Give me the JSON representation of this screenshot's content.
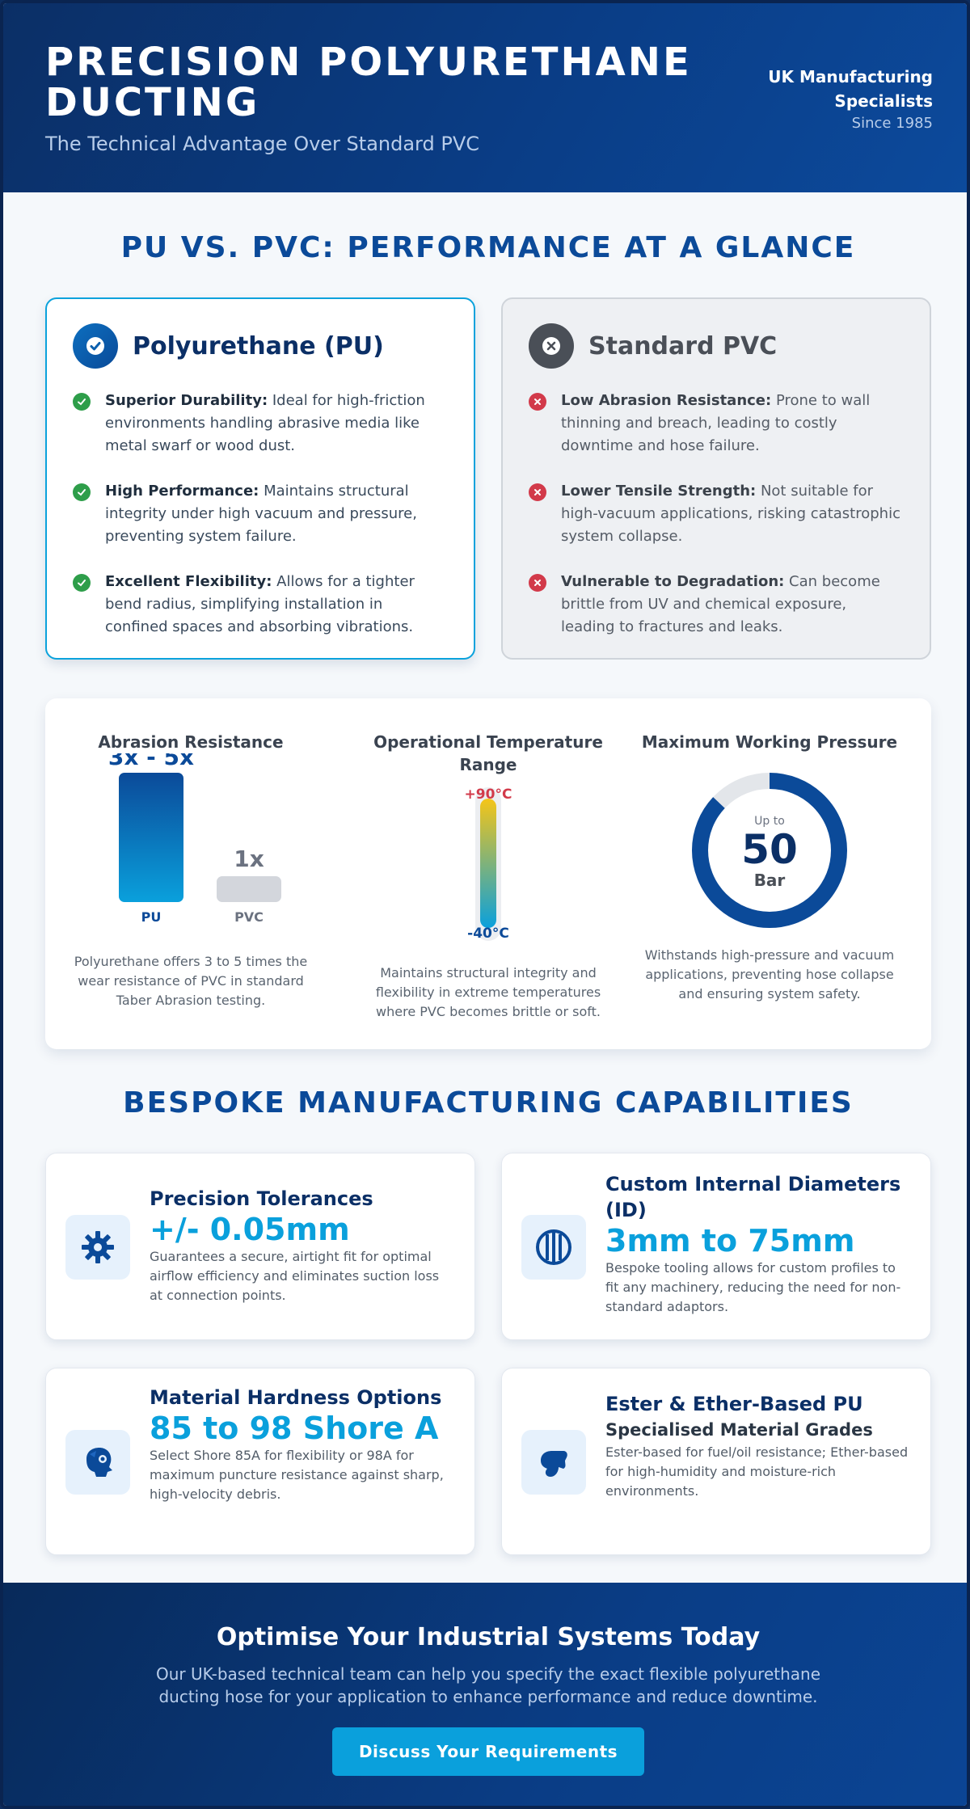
{
  "header": {
    "title": "PRECISION POLYURETHANE DUCTING",
    "subtitle": "The Technical Advantage Over Standard PVC",
    "uk_label": "UK Manufacturing Specialists",
    "since": "Since 1985"
  },
  "comparison": {
    "title": "PU VS. PVC: PERFORMANCE AT A GLANCE",
    "pu": {
      "heading": "Polyurethane (PU)",
      "icon": "check-badge-icon",
      "items": [
        {
          "lead": "Superior Durability:",
          "text": " Ideal for high-friction environments handling abrasive media like metal swarf or wood dust."
        },
        {
          "lead": "High Performance:",
          "text": " Maintains structural integrity under high vacuum and pressure, preventing system failure."
        },
        {
          "lead": "Excellent Flexibility:",
          "text": " Allows for a tighter bend radius, simplifying installation in confined spaces and absorbing vibrations."
        }
      ]
    },
    "pvc": {
      "heading": "Standard PVC",
      "icon": "x-badge-icon",
      "items": [
        {
          "lead": "Low Abrasion Resistance:",
          "text": " Prone to wall thinning and breach, leading to costly downtime and hose failure."
        },
        {
          "lead": "Lower Tensile Strength:",
          "text": " Not suitable for high-vacuum applications, risking catastrophic system collapse."
        },
        {
          "lead": "Vulnerable to Degradation:",
          "text": " Can become brittle from UV and chemical exposure, leading to fractures and leaks."
        }
      ]
    }
  },
  "metrics": {
    "abrasion": {
      "title": "Abrasion Resistance",
      "pu_value": "3x - 5x",
      "pvc_value": "1x",
      "pu_label": "PU",
      "pvc_label": "PVC",
      "pu_level": 5,
      "pvc_level": 1,
      "description": "Polyurethane offers 3 to 5 times the wear resistance of PVC in standard Taber Abrasion testing.",
      "colors": {
        "pu": "#0a7fd0",
        "pvc": "#d3d6dc"
      }
    },
    "temperature": {
      "title": "Operational Temperature Range",
      "max": "+90°C",
      "min": "-40°C",
      "description": "Maintains structural integrity and flexibility in extreme temperatures where PVC becomes brittle or soft.",
      "colors": {
        "hot": "#f5c518",
        "cold": "#0aa0dc",
        "max_text": "#d23a4a",
        "min_text": "#0b4a99"
      }
    },
    "pressure": {
      "title": "Maximum Working Pressure",
      "prefix": "Up to",
      "value": "50",
      "unit": "Bar",
      "fill_fraction": 0.87,
      "description": "Withstands high-pressure and vacuum applications, preventing hose collapse and ensuring system safety.",
      "colors": {
        "ring": "#0b4a99",
        "track": "#e3e6ea"
      }
    }
  },
  "capabilities": {
    "title": "BESPOKE MANUFACTURING CAPABILITIES",
    "items": [
      {
        "icon": "gear-icon",
        "title": "Precision Tolerances",
        "value": "+/- 0.05mm",
        "text": "Guarantees a secure, airtight fit for optimal airflow efficiency and eliminates suction loss at connection points."
      },
      {
        "icon": "duct-section-icon",
        "title": "Custom Internal Diameters (ID)",
        "value": "3mm to 75mm",
        "text": "Bespoke tooling allows for custom profiles to fit any machinery, reducing the need for non-standard adaptors."
      },
      {
        "icon": "shield-head-icon",
        "title": "Material Hardness Options",
        "value": "85 to 98 Shore A",
        "text": "Select Shore 85A for flexibility or 98A for maximum puncture resistance against sharp, high-velocity debris."
      },
      {
        "icon": "oil-drop-icon",
        "title": "Ester & Ether-Based PU",
        "value": "Specialised Material Grades",
        "text": "Ester-based for fuel/oil resistance; Ether-based for high-humidity and moisture-rich environments."
      }
    ]
  },
  "cta": {
    "title": "Optimise Your Industrial Systems Today",
    "text": "Our UK-based technical team can help you specify the exact flexible polyurethane ducting hose for your application to enhance performance and reduce downtime.",
    "button": "Discuss Your Requirements"
  }
}
